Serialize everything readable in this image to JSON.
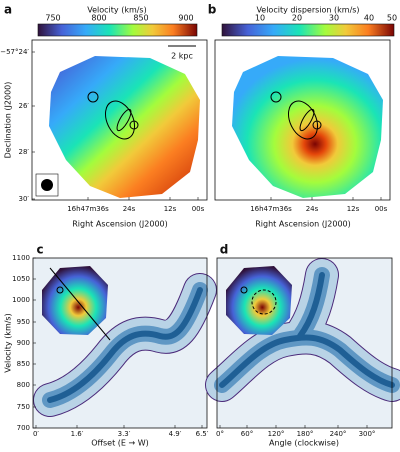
{
  "panels": [
    {
      "label": "a",
      "colorbar": {
        "title": "Velocity (km/s)",
        "ticks": [
          "750",
          "800",
          "850",
          "900"
        ]
      },
      "scalebar": "2 kpc",
      "y_axis": {
        "label": "Declination (J2000)",
        "ticks": [
          "−57°24′",
          "26′",
          "28′",
          "30′"
        ]
      },
      "x_axis": {
        "label": "Right Ascension (J2000)",
        "ticks": [
          "16h47m36s",
          "24s",
          "12s",
          "00s"
        ]
      }
    },
    {
      "label": "b",
      "colorbar": {
        "title": "Velocity dispersion (km/s)",
        "ticks": [
          "10",
          "20",
          "30",
          "40",
          "50"
        ]
      },
      "x_axis": {
        "label": "Right Ascension (J2000)",
        "ticks": [
          "16h47m36s",
          "24s",
          "12s",
          "00s"
        ]
      }
    },
    {
      "label": "c",
      "y_axis": {
        "label": "Velocity (km/s)",
        "ticks": [
          "1100",
          "1050",
          "1000",
          "950",
          "900",
          "850",
          "800",
          "750",
          "700"
        ]
      },
      "x_axis": {
        "label": "Offset (E → W)",
        "ticks": [
          "0′",
          "1.6′",
          "3.3′",
          "4.9′",
          "6.5′"
        ]
      }
    },
    {
      "label": "d",
      "x_axis": {
        "label": "Angle (clockwise)",
        "ticks": [
          "0°",
          "60°",
          "120°",
          "180°",
          "240°",
          "300°"
        ]
      }
    }
  ]
}
